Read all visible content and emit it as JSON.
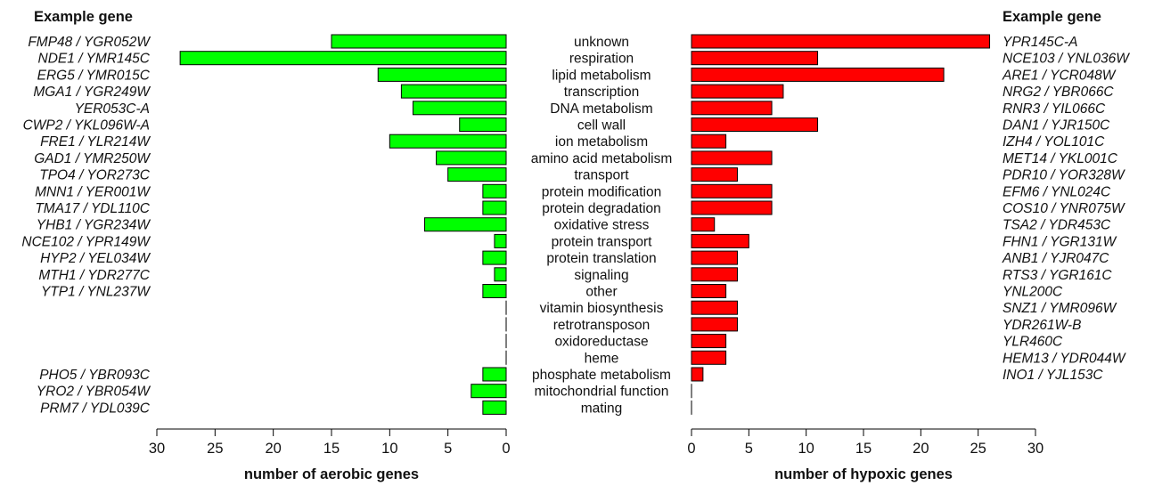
{
  "chart_data": [
    {
      "type": "bar",
      "orientation": "horizontal",
      "direction": "right-to-left",
      "xlabel": "number of aerobic genes",
      "xlim": [
        0,
        30
      ],
      "xticks": [
        30,
        25,
        20,
        15,
        10,
        5,
        0
      ],
      "bar_color": "#00ff00",
      "gene_header": "Example gene",
      "categories": [
        "unknown",
        "respiration",
        "lipid metabolism",
        "transcription",
        "DNA metabolism",
        "cell wall",
        "ion metabolism",
        "amino acid metabolism",
        "transport",
        "protein modification",
        "protein degradation",
        "oxidative stress",
        "protein transport",
        "protein translation",
        "signaling",
        "other",
        "vitamin biosynthesis",
        "retrotransposon",
        "oxidoreductase",
        "heme",
        "phosphate metabolism",
        "mitochondrial function",
        "mating"
      ],
      "values": [
        15,
        28,
        11,
        9,
        8,
        4,
        10,
        6,
        5,
        2,
        2,
        7,
        1,
        2,
        1,
        2,
        0,
        0,
        0,
        0,
        2,
        3,
        2
      ],
      "example_genes": [
        "FMP48 / YGR052W",
        "NDE1 / YMR145C",
        "ERG5 / YMR015C",
        "MGA1 / YGR249W",
        "YER053C-A",
        "CWP2 / YKL096W-A",
        "FRE1 / YLR214W",
        "GAD1 / YMR250W",
        "TPO4 / YOR273C",
        "MNN1 / YER001W",
        "TMA17 / YDL110C",
        "YHB1 / YGR234W",
        "NCE102 / YPR149W",
        "HYP2 / YEL034W",
        "MTH1 / YDR277C",
        "YTP1 / YNL237W",
        "",
        "",
        "",
        "",
        "PHO5 / YBR093C",
        "YRO2 / YBR054W",
        "PRM7 / YDL039C"
      ]
    },
    {
      "type": "bar",
      "orientation": "horizontal",
      "direction": "left-to-right",
      "xlabel": "number of hypoxic genes",
      "xlim": [
        0,
        30
      ],
      "xticks": [
        0,
        5,
        10,
        15,
        20,
        25,
        30
      ],
      "bar_color": "#ff0000",
      "gene_header": "Example gene",
      "categories": [
        "unknown",
        "respiration",
        "lipid metabolism",
        "transcription",
        "DNA metabolism",
        "cell wall",
        "ion metabolism",
        "amino acid metabolism",
        "transport",
        "protein modification",
        "protein degradation",
        "oxidative stress",
        "protein transport",
        "protein translation",
        "signaling",
        "other",
        "vitamin biosynthesis",
        "retrotransposon",
        "oxidoreductase",
        "heme",
        "phosphate metabolism",
        "mitochondrial function",
        "mating"
      ],
      "values": [
        26,
        11,
        22,
        8,
        7,
        11,
        3,
        7,
        4,
        7,
        7,
        2,
        5,
        4,
        4,
        3,
        4,
        4,
        3,
        3,
        1,
        0,
        0
      ],
      "example_genes": [
        "YPR145C-A",
        "NCE103 / YNL036W",
        "ARE1 / YCR048W",
        "NRG2 / YBR066C",
        "RNR3 / YIL066C",
        "DAN1 / YJR150C",
        "IZH4 / YOL101C",
        "MET14 / YKL001C",
        "PDR10 / YOR328W",
        "EFM6 / YNL024C",
        "COS10 / YNR075W",
        "TSA2 / YDR453C",
        "FHN1 / YGR131W",
        "ANB1 / YJR047C",
        "RTS3 / YGR161C",
        "YNL200C",
        "SNZ1 / YMR096W",
        "YDR261W-B",
        "YLR460C",
        "HEM13 / YDR044W",
        "INO1 / YJL153C",
        "",
        ""
      ]
    }
  ]
}
